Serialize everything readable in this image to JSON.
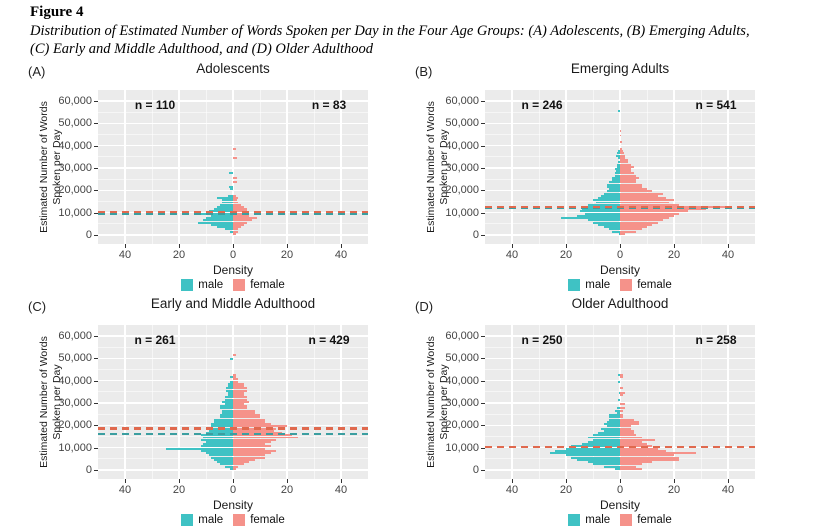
{
  "figure": {
    "label": "Figure 4",
    "caption_line1": "Distribution of Estimated Number of Words Spoken per Day in the Four Age Groups: (A) Adolescents, (B) Emerging Adults,",
    "caption_line2": "(C) Early and Middle Adulthood, and (D) Older Adulthood"
  },
  "colors": {
    "male_fill": "#3FC2C4",
    "female_fill": "#F5928A",
    "male_line": "#3B9EA0",
    "female_line": "#E0694E",
    "panel_bg": "#EBEBEB",
    "grid_major": "#FFFFFF",
    "grid_minor": "rgba(255,255,255,0.55)",
    "axis_text": "#444444"
  },
  "legend": {
    "male": "male",
    "female": "female"
  },
  "axes": {
    "y_label_line1": "Estimated Number of Words",
    "y_label_line2": "Spoken per Day",
    "x_label": "Density",
    "y_ticks": [
      {
        "label": "60,000",
        "value": 60000
      },
      {
        "label": "50,000",
        "value": 50000
      },
      {
        "label": "40,000",
        "value": 40000
      },
      {
        "label": "30,000",
        "value": 30000
      },
      {
        "label": "20,000",
        "value": 20000
      },
      {
        "label": "10,000",
        "value": 10000
      },
      {
        "label": "0",
        "value": 0
      }
    ],
    "x_ticks": [
      {
        "label": "40",
        "value": -40
      },
      {
        "label": "20",
        "value": -20
      },
      {
        "label": "0",
        "value": 0
      },
      {
        "label": "20",
        "value": 20
      },
      {
        "label": "40",
        "value": 40
      }
    ],
    "x_range": [
      -50,
      50
    ],
    "y_range": [
      0,
      60000
    ]
  },
  "chart_data": {
    "type": "bar",
    "subtype": "back-to-back-horizontal-histogram",
    "bin_width_words": 1000,
    "x_axis": "Density",
    "y_axis": "Estimated Number of Words Spoken per Day",
    "panels": [
      {
        "letter": "(A)",
        "title": "Adolescents",
        "n_male_label": "n = 110",
        "n_female_label": "n = 83",
        "male_n": 110,
        "female_n": 83,
        "male_median_line_words": 9500,
        "female_median_line_words": 10300,
        "male_density": [
          0,
          1,
          3,
          6,
          8,
          13,
          11,
          10,
          8,
          12,
          9,
          7,
          6,
          5,
          4,
          4,
          6,
          2,
          0,
          0,
          1,
          1.5,
          0,
          0,
          0,
          0,
          0,
          1.5,
          0,
          0,
          0,
          0,
          0,
          0,
          0,
          0,
          0,
          0,
          0,
          0,
          0,
          0,
          0,
          0,
          0,
          0,
          0,
          0,
          0,
          0,
          0,
          0,
          0,
          0,
          0,
          0,
          0,
          0,
          0,
          0
        ],
        "female_density": [
          1,
          2,
          2,
          3,
          4,
          5,
          7,
          9,
          6,
          5,
          5,
          5,
          4,
          3,
          2,
          1.5,
          2,
          1,
          0,
          0,
          0,
          0,
          0,
          1.5,
          0,
          1.5,
          0,
          0,
          0,
          0,
          0,
          0,
          0,
          0,
          1.5,
          0,
          0,
          0,
          1.2,
          0,
          0,
          0,
          0,
          0,
          0,
          0,
          0,
          0,
          0,
          0,
          0,
          0,
          0,
          0,
          0,
          0,
          0,
          0,
          0,
          0
        ]
      },
      {
        "letter": "(B)",
        "title": "Emerging Adults",
        "n_male_label": "n = 246",
        "n_female_label": "n = 541",
        "male_n": 246,
        "female_n": 541,
        "male_median_line_words": 12200,
        "female_median_line_words": 12500,
        "male_density": [
          0.5,
          3,
          4,
          6,
          8,
          10,
          12,
          22,
          16,
          13,
          15,
          14,
          13,
          12,
          9,
          10,
          8,
          7,
          6,
          5,
          4,
          5,
          5,
          4,
          3,
          3,
          2,
          2,
          1.5,
          2,
          1,
          1,
          0.8,
          0,
          0.8,
          1.5,
          1,
          0.8,
          0,
          0,
          0,
          0,
          0,
          0,
          0,
          0,
          0,
          0,
          0,
          0,
          0,
          0,
          0,
          0,
          0,
          0.8,
          0,
          0,
          0,
          0
        ],
        "female_density": [
          2,
          6,
          8,
          10,
          12,
          14,
          16,
          18,
          20,
          22,
          25,
          32,
          40,
          22,
          18,
          20,
          17,
          14,
          16,
          12,
          10,
          8,
          8,
          6,
          6,
          7,
          6,
          5,
          4,
          4,
          5,
          4,
          3,
          3,
          2,
          2,
          1.5,
          1,
          0.8,
          0,
          0,
          0.6,
          0,
          0,
          0.5,
          0,
          0.5,
          0,
          0,
          0,
          0,
          0,
          0,
          0,
          0,
          0,
          0,
          0,
          0,
          0
        ]
      },
      {
        "letter": "(C)",
        "title": "Early and Middle Adulthood",
        "n_male_label": "n = 261",
        "n_female_label": "n = 429",
        "male_n": 261,
        "female_n": 429,
        "male_median_line_words": 16000,
        "female_median_line_words": 18500,
        "male_density": [
          1,
          3,
          5,
          6,
          7,
          8,
          9,
          10,
          12,
          25,
          12,
          11,
          10,
          12,
          11,
          12,
          10,
          9,
          8,
          8,
          8,
          7,
          7,
          5,
          5,
          4,
          4,
          5,
          5,
          3,
          4,
          3,
          3,
          2,
          2,
          2.5,
          2.5,
          2,
          2,
          1,
          0,
          1,
          0,
          0,
          0,
          0,
          0,
          0,
          0,
          1,
          0,
          0,
          0,
          0,
          0,
          0,
          0,
          0,
          0,
          0
        ],
        "female_density": [
          1,
          2,
          4,
          6,
          8,
          12,
          12,
          14,
          16,
          12,
          14,
          12,
          14,
          16,
          24,
          22,
          18,
          15,
          16,
          20,
          14,
          12,
          12,
          10,
          10,
          8,
          8,
          5,
          5,
          4,
          6,
          5,
          5,
          4,
          4,
          5,
          5,
          4,
          4,
          2,
          2,
          1,
          1,
          0,
          0,
          0,
          0,
          0,
          0,
          0,
          0,
          1.2,
          0,
          0,
          0,
          0,
          0,
          0,
          0,
          0
        ]
      },
      {
        "letter": "(D)",
        "title": "Older Adulthood",
        "n_male_label": "n = 250",
        "n_female_label": "n = 258",
        "male_n": 250,
        "female_n": 258,
        "male_median_line_words": 10200,
        "female_median_line_words": 10400,
        "male_density": [
          2,
          6,
          10,
          12,
          16,
          18,
          20,
          26,
          24,
          20,
          18,
          14,
          12,
          10,
          12,
          10,
          8,
          6,
          7,
          5,
          6,
          5,
          4,
          4,
          4,
          1,
          2,
          1,
          0,
          0,
          0,
          0.8,
          0,
          0,
          0.5,
          0,
          0,
          0,
          0,
          0.6,
          0,
          0,
          0.8,
          0,
          0,
          0,
          0,
          0,
          0,
          0,
          0,
          0,
          0,
          0,
          0,
          0,
          0,
          0,
          0,
          0
        ],
        "female_density": [
          8,
          6,
          8,
          12,
          22,
          22,
          20,
          28,
          17,
          14,
          12,
          10,
          8,
          13,
          8,
          6,
          5,
          5,
          4,
          4,
          7,
          7,
          5,
          1,
          1,
          0,
          1,
          2,
          0,
          2,
          0,
          0,
          0,
          1,
          2,
          0,
          1,
          0,
          0,
          0,
          0,
          1,
          1.2,
          0,
          0,
          0,
          0,
          0,
          0,
          0,
          0,
          0,
          0,
          0,
          0,
          0,
          0,
          0,
          0,
          0
        ]
      }
    ]
  }
}
